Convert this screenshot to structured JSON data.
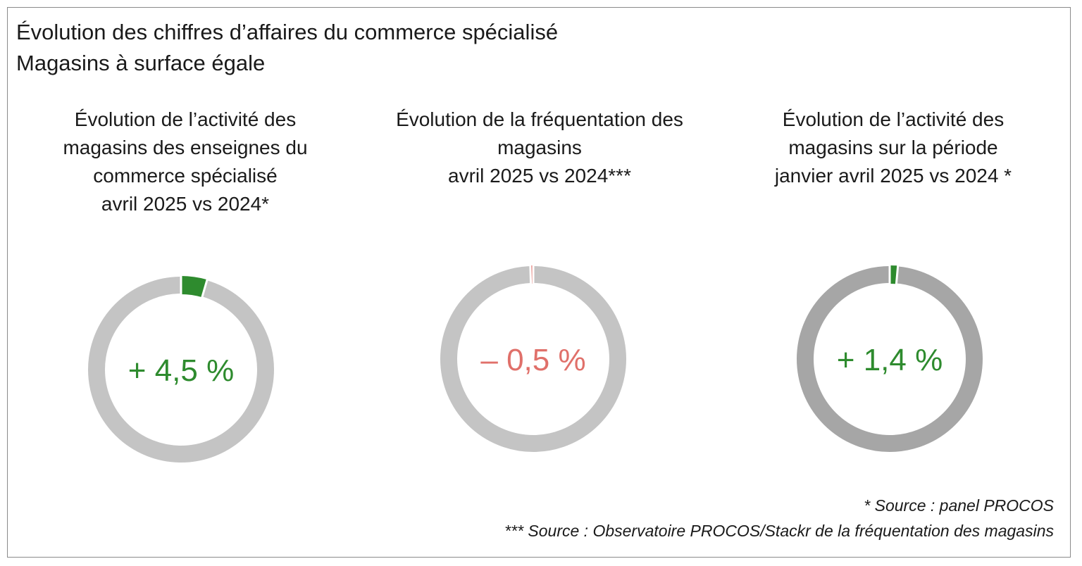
{
  "header": {
    "title_line1": "Évolution des chiffres d’affaires du commerce spécialisé",
    "title_line2": "Magasins à surface égale"
  },
  "colors": {
    "ring_light": "#c4c4c4",
    "ring_dark": "#a6a6a6",
    "positive": "#2e8b2e",
    "negative": "#e0706a"
  },
  "chart_data": [
    {
      "type": "pie",
      "title_lines": [
        "Évolution de l’activité des",
        "magasins des enseignes du",
        "commerce spécialisé",
        "avril 2025 vs 2024*"
      ],
      "value": 4.5,
      "unit": "%",
      "label": "+ 4,5 %",
      "sign": "positive"
    },
    {
      "type": "pie",
      "title_lines": [
        "Évolution de la fréquentation des",
        "magasins",
        "avril 2025 vs 2024***"
      ],
      "value": -0.5,
      "unit": "%",
      "label": "– 0,5 %",
      "sign": "negative"
    },
    {
      "type": "pie",
      "title_lines": [
        "Évolution de l’activité des",
        "magasins sur la période",
        "janvier avril 2025 vs 2024 *"
      ],
      "value": 1.4,
      "unit": "%",
      "label": "+ 1,4 %",
      "sign": "positive"
    }
  ],
  "footnotes": {
    "note1": "* Source : panel PROCOS",
    "note2": "*** Source : Observatoire PROCOS/Stackr de la fréquentation des magasins"
  }
}
